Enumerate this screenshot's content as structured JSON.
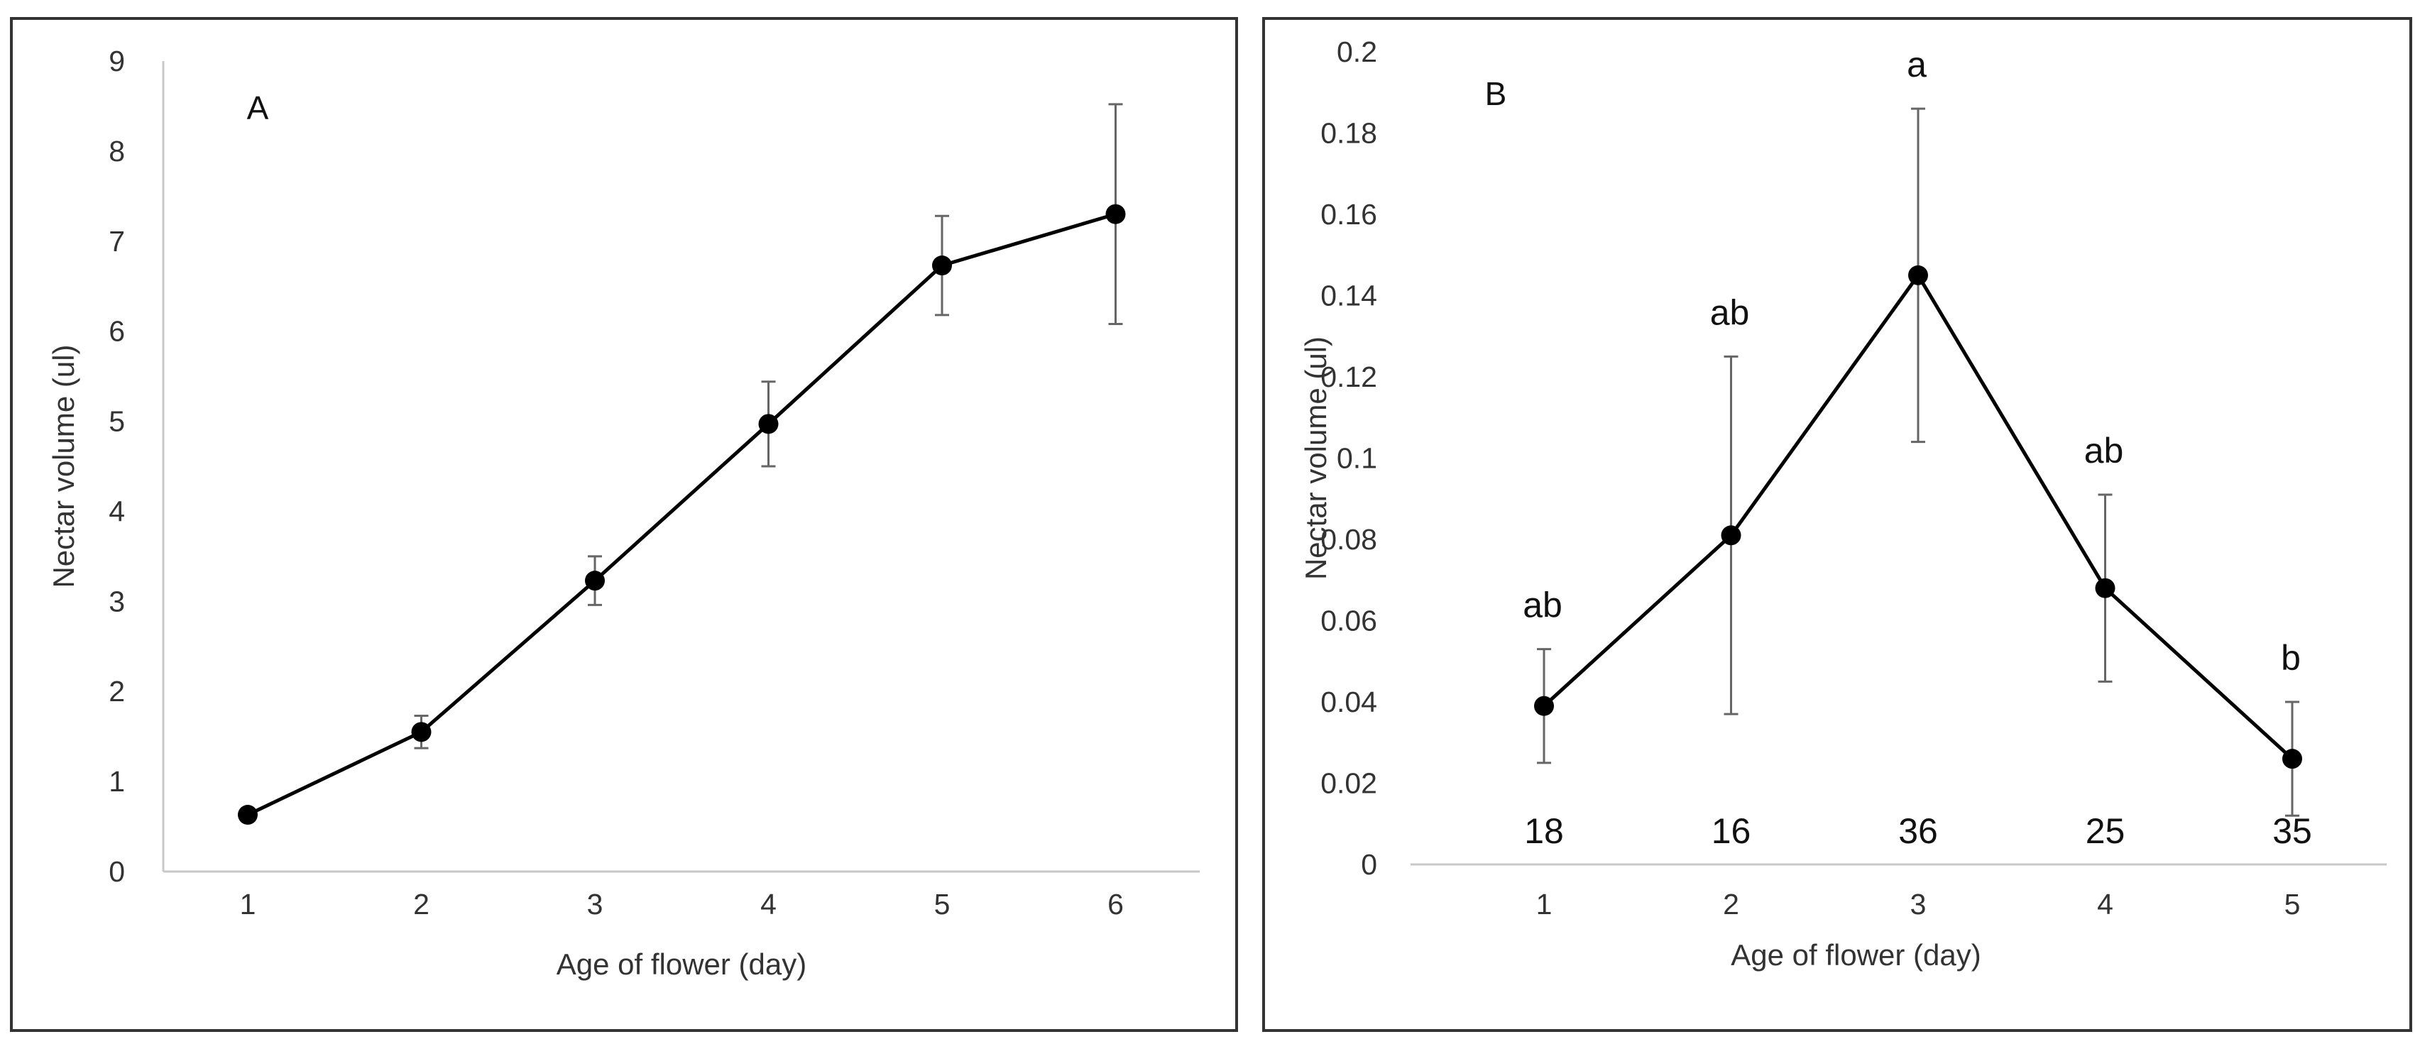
{
  "colors": {
    "line": "#000000",
    "marker": "#000000",
    "errorbar": "#666666",
    "axis": "#c8c8c8",
    "text": "#333333"
  },
  "chart_data": [
    {
      "type": "line",
      "panel_label": "A",
      "title": "",
      "xlabel": "Age of flower (day)",
      "ylabel": "Nectar volume (ul)",
      "x": [
        "1",
        "2",
        "3",
        "4",
        "5",
        "6"
      ],
      "ylim": [
        0,
        9
      ],
      "yticks": [
        "0",
        "1",
        "2",
        "3",
        "4",
        "5",
        "6",
        "7",
        "8",
        "9"
      ],
      "axis_style": "left-and-bottom",
      "series": [
        {
          "name": "Nectar volume",
          "values": [
            0.63,
            1.55,
            3.23,
            4.97,
            6.73,
            7.3
          ],
          "errors": [
            0.0,
            0.18,
            0.27,
            0.47,
            0.55,
            1.22
          ]
        }
      ],
      "letters": [],
      "sample_sizes": []
    },
    {
      "type": "line",
      "panel_label": "B",
      "title": "",
      "xlabel": "Age of flower (day)",
      "ylabel": "Nectar volume (ul)",
      "x": [
        "1",
        "2",
        "3",
        "4",
        "5"
      ],
      "ylim": [
        0,
        0.2
      ],
      "yticks": [
        "0",
        "0.02",
        "0.04",
        "0.06",
        "0.08",
        "0.1",
        "0.12",
        "0.14",
        "0.16",
        "0.18",
        "0.2"
      ],
      "axis_style": "bottom-only",
      "series": [
        {
          "name": "Nectar volume",
          "values": [
            0.039,
            0.081,
            0.145,
            0.068,
            0.026
          ],
          "errors": [
            0.014,
            0.044,
            0.041,
            0.023,
            0.014
          ]
        }
      ],
      "letters": [
        "ab",
        "ab",
        "a",
        "ab",
        "b"
      ],
      "sample_sizes": [
        "18",
        "16",
        "36",
        "25",
        "35"
      ]
    }
  ]
}
